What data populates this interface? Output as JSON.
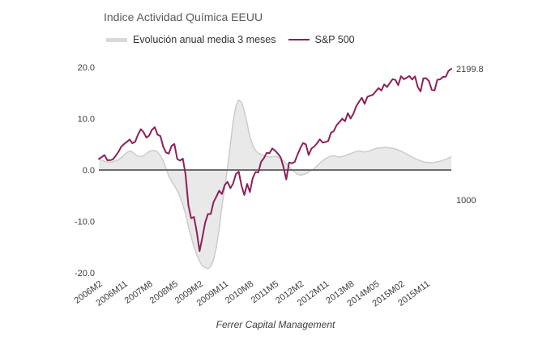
{
  "title": "Indice Actividad Química EEUU",
  "footer": "Ferrer Capital Management",
  "legend": [
    {
      "label": "Evolución anual media 3 meses",
      "color": "#d9d9d9"
    },
    {
      "label": "S&P 500",
      "color": "#8b2257"
    }
  ],
  "chart_data": {
    "type": "area+line",
    "title": "Indice Actividad Química EEUU",
    "x_start": "2006M2",
    "x_end": "2016M8",
    "x_axis": {
      "ticks": [
        {
          "label": "2006M2",
          "index": 0
        },
        {
          "label": "2006M11",
          "index": 9
        },
        {
          "label": "2007M8",
          "index": 18
        },
        {
          "label": "2008M5",
          "index": 27
        },
        {
          "label": "2009M2",
          "index": 36
        },
        {
          "label": "2009M11",
          "index": 45
        },
        {
          "label": "2010M8",
          "index": 54
        },
        {
          "label": "2011M5",
          "index": 63
        },
        {
          "label": "2012M2",
          "index": 72
        },
        {
          "label": "2012M11",
          "index": 81
        },
        {
          "label": "2013M8",
          "index": 90
        },
        {
          "label": "2014M05",
          "index": 99
        },
        {
          "label": "2015M02",
          "index": 108
        },
        {
          "label": "2015M11",
          "index": 117
        }
      ],
      "label_rotation_deg": -36
    },
    "y_axis_left": {
      "range": [
        -20,
        20
      ],
      "ticks": [
        {
          "label": "20.0",
          "value": 20
        },
        {
          "label": "10.0",
          "value": 10
        },
        {
          "label": "0.0",
          "value": 0
        },
        {
          "label": "-10.0",
          "value": -10
        },
        {
          "label": "-20.0",
          "value": -20
        }
      ]
    },
    "y_axis_right": {
      "scale": "log",
      "labels": [
        {
          "label": "2199.8",
          "value": 2199.8
        },
        {
          "label": "1000",
          "value": 1000
        }
      ]
    },
    "zero_line_color": "#6b6b6b",
    "grid": false,
    "legend_position": "top",
    "series": [
      {
        "name": "Evolución anual media 3 meses",
        "type": "area",
        "axis": "left",
        "unit": "%",
        "fill_color": "#e9e9e9",
        "line_color": "#cccccc",
        "values": [
          2.2,
          1.9,
          1.7,
          1.6,
          1.5,
          1.6,
          1.8,
          2.0,
          2.4,
          2.9,
          3.4,
          3.7,
          3.5,
          3.0,
          2.7,
          2.6,
          2.8,
          3.2,
          3.6,
          3.8,
          3.8,
          3.5,
          2.8,
          1.8,
          0.4,
          -1.2,
          -2.2,
          -3.0,
          -4.0,
          -5.2,
          -6.8,
          -8.5,
          -11.0,
          -13.0,
          -15.0,
          -16.5,
          -17.8,
          -18.6,
          -19.0,
          -19.2,
          -18.8,
          -17.5,
          -15.0,
          -11.5,
          -7.0,
          -3.5,
          0.5,
          5.0,
          9.5,
          12.5,
          13.6,
          13.2,
          11.5,
          9.0,
          6.5,
          4.8,
          3.8,
          3.3,
          3.0,
          2.8,
          2.6,
          2.5,
          2.6,
          2.7,
          2.5,
          2.2,
          1.8,
          1.2,
          0.6,
          0.1,
          -0.4,
          -0.8,
          -1.0,
          -0.9,
          -0.7,
          -0.4,
          -0.1,
          0.3,
          0.8,
          1.3,
          1.8,
          2.2,
          2.5,
          2.7,
          2.8,
          2.6,
          2.5,
          2.6,
          2.8,
          3.0,
          3.2,
          3.4,
          3.6,
          3.7,
          3.6,
          3.5,
          3.6,
          3.8,
          4.0,
          4.2,
          4.3,
          4.3,
          4.4,
          4.4,
          4.3,
          4.2,
          4.1,
          3.9,
          3.7,
          3.4,
          3.1,
          2.8,
          2.5,
          2.2,
          2.0,
          1.8,
          1.6,
          1.5,
          1.5,
          1.4,
          1.5,
          1.6,
          1.7,
          1.9,
          2.1,
          2.3,
          2.6
        ]
      },
      {
        "name": "S&P 500",
        "type": "line",
        "axis": "right",
        "color": "#8b2257",
        "last_value_label": "2199.8",
        "values": [
          1280,
          1294,
          1310,
          1270,
          1270,
          1276,
          1303,
          1335,
          1377,
          1400,
          1418,
          1438,
          1406,
          1420,
          1482,
          1530,
          1503,
          1455,
          1473,
          1526,
          1549,
          1481,
          1468,
          1378,
          1330,
          1322,
          1385,
          1400,
          1280,
          1267,
          1282,
          1166,
          968,
          896,
          903,
          825,
          735,
          797,
          872,
          919,
          919,
          987,
          1020,
          1057,
          1036,
          1095,
          1115,
          1073,
          1104,
          1169,
          1186,
          1089,
          1030,
          1101,
          1049,
          1141,
          1183,
          1180,
          1257,
          1286,
          1327,
          1325,
          1363,
          1345,
          1320,
          1292,
          1218,
          1131,
          1253,
          1246,
          1257,
          1312,
          1365,
          1408,
          1397,
          1310,
          1362,
          1379,
          1406,
          1440,
          1412,
          1416,
          1426,
          1498,
          1514,
          1569,
          1597,
          1630,
          1606,
          1685,
          1632,
          1681,
          1756,
          1805,
          1848,
          1782,
          1859,
          1872,
          1883,
          1923,
          1960,
          1930,
          2003,
          1972,
          2018,
          2067,
          2058,
          1994,
          2104,
          2067,
          2085,
          2107,
          2063,
          2103,
          1972,
          1920,
          2079,
          2080,
          2043,
          1940,
          1932,
          2059,
          2065,
          2096,
          2098,
          2173,
          2199.8
        ]
      }
    ]
  }
}
